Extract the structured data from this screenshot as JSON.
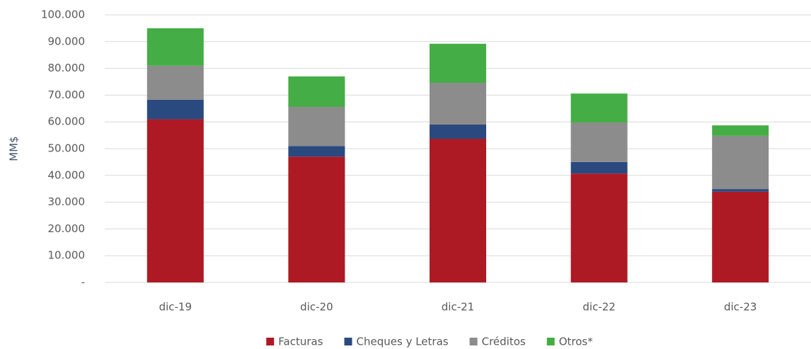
{
  "chart_data": {
    "type": "stacked_bar",
    "categories": [
      "dic-19",
      "dic-20",
      "dic-21",
      "dic-22",
      "dic-23"
    ],
    "y_label": "MM$",
    "series": [
      {
        "name": "Facturas",
        "color": "#ad1a24",
        "values": [
          61000,
          47000,
          53700,
          40700,
          33900
        ]
      },
      {
        "name": "Cheques y Letras",
        "color": "#2a4a7f",
        "values": [
          7300,
          4000,
          5300,
          4300,
          1000
        ]
      },
      {
        "name": "Créditos",
        "color": "#8c8c8c",
        "values": [
          12700,
          14600,
          15600,
          14800,
          19900
        ]
      },
      {
        "name": "Otros*",
        "color": "#45ad45",
        "values": [
          14000,
          11400,
          14600,
          10800,
          3900
        ]
      }
    ],
    "ylim": [
      0,
      100000
    ],
    "yticks": [
      {
        "value": 0,
        "label": "-"
      },
      {
        "value": 10000,
        "label": "10.000"
      },
      {
        "value": 20000,
        "label": "20.000"
      },
      {
        "value": 30000,
        "label": "30.000"
      },
      {
        "value": 40000,
        "label": "40.000"
      },
      {
        "value": 50000,
        "label": "50.000"
      },
      {
        "value": 60000,
        "label": "60.000"
      },
      {
        "value": 70000,
        "label": "70.000"
      },
      {
        "value": 80000,
        "label": "80.000"
      },
      {
        "value": 90000,
        "label": "90.000"
      },
      {
        "value": 100000,
        "label": "100.000"
      }
    ],
    "grid": true,
    "legend": "bottom"
  }
}
